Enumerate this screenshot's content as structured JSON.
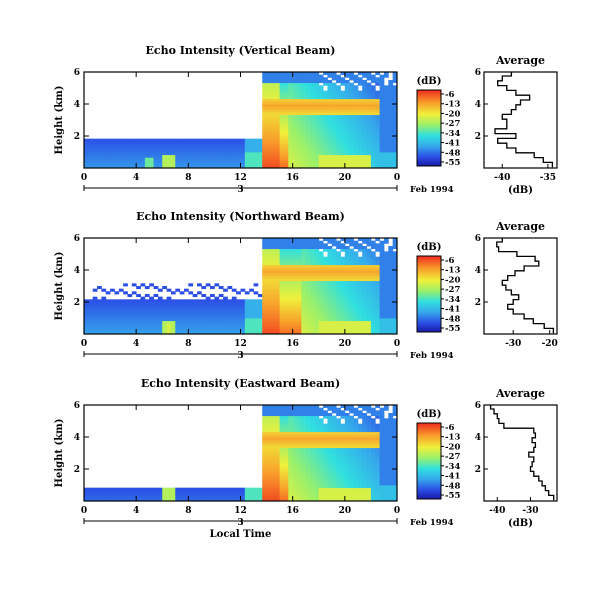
{
  "chart_data": [
    {
      "type": "heatmap",
      "title": "Echo Intensity (Vertical Beam)",
      "ylabel": "Height (km)",
      "xlabel": "",
      "x_ticks": [
        "0",
        "4",
        "8",
        "12",
        "16",
        "20",
        "0"
      ],
      "y_ticks": [
        "2",
        "4",
        "6"
      ],
      "xlim": [
        0,
        24
      ],
      "ylim": [
        0,
        6
      ],
      "date_label": "3",
      "date_suffix": "Feb 1994",
      "colorbar": {
        "unit": "(dB)",
        "ticks": [
          "-6",
          "-13",
          "-20",
          "-27",
          "-34",
          "-41",
          "-48",
          "-55"
        ],
        "range": [
          -55,
          -6
        ]
      },
      "average_profile": {
        "title": "Average",
        "xlabel": "(dB)",
        "x_ticks": [
          "-40",
          "-35"
        ],
        "xlim": [
          -42,
          -34
        ],
        "y_ticks": [
          "2",
          "4",
          "6"
        ],
        "heights": [
          0.2,
          0.5,
          0.8,
          1.1,
          1.4,
          1.7,
          2.0,
          2.3,
          2.6,
          2.9,
          3.2,
          3.5,
          3.8,
          4.1,
          4.4,
          4.7,
          5.0,
          5.3,
          5.6,
          5.9
        ],
        "values": [
          -34.5,
          -35.5,
          -36.5,
          -38.5,
          -39.5,
          -40.5,
          -38.5,
          -40.8,
          -39.5,
          -39.5,
          -40.0,
          -39.0,
          -38.5,
          -38.0,
          -37.0,
          -38.5,
          -39.5,
          -40.5,
          -40.0,
          -39.0
        ]
      }
    },
    {
      "type": "heatmap",
      "title": "Echo Intensity (Northward Beam)",
      "ylabel": "Height (km)",
      "xlabel": "",
      "x_ticks": [
        "0",
        "4",
        "8",
        "12",
        "16",
        "20",
        "0"
      ],
      "y_ticks": [
        "2",
        "4",
        "6"
      ],
      "xlim": [
        0,
        24
      ],
      "ylim": [
        0,
        6
      ],
      "date_label": "3",
      "date_suffix": "Feb 1994",
      "colorbar": {
        "unit": "(dB)",
        "ticks": [
          "-6",
          "-13",
          "-20",
          "-27",
          "-34",
          "-41",
          "-48",
          "-55"
        ],
        "range": [
          -55,
          -6
        ]
      },
      "average_profile": {
        "title": "Average",
        "xlabel": "",
        "x_ticks": [
          "-30",
          "-20"
        ],
        "xlim": [
          -38,
          -18
        ],
        "y_ticks": [
          "2",
          "4",
          "6"
        ],
        "heights": [
          0.2,
          0.5,
          0.8,
          1.1,
          1.4,
          1.7,
          2.0,
          2.3,
          2.6,
          2.9,
          3.2,
          3.5,
          3.8,
          4.1,
          4.4,
          4.7,
          5.0,
          5.3,
          5.6,
          5.9
        ],
        "values": [
          -19.0,
          -21.5,
          -24.5,
          -27.0,
          -30.0,
          -31.5,
          -30.0,
          -28.5,
          -30.5,
          -32.0,
          -33.0,
          -31.5,
          -29.5,
          -27.0,
          -23.0,
          -24.0,
          -29.0,
          -34.0,
          -34.5,
          -33.0
        ]
      }
    },
    {
      "type": "heatmap",
      "title": "Echo Intensity (Eastward Beam)",
      "ylabel": "Height (km)",
      "xlabel": "Local Time",
      "x_ticks": [
        "0",
        "4",
        "8",
        "12",
        "16",
        "20",
        "0"
      ],
      "y_ticks": [
        "2",
        "4",
        "6"
      ],
      "xlim": [
        0,
        24
      ],
      "ylim": [
        0,
        6
      ],
      "date_label": "3",
      "date_suffix": "Feb 1994",
      "colorbar": {
        "unit": "(dB)",
        "ticks": [
          "-6",
          "-13",
          "-20",
          "-27",
          "-34",
          "-41",
          "-48",
          "-55"
        ],
        "range": [
          -55,
          -6
        ]
      },
      "average_profile": {
        "title": "Average",
        "xlabel": "(dB)",
        "x_ticks": [
          "-40",
          "-30"
        ],
        "xlim": [
          -44,
          -22
        ],
        "y_ticks": [
          "2",
          "4",
          "6"
        ],
        "heights": [
          0.2,
          0.5,
          0.8,
          1.1,
          1.4,
          1.7,
          2.0,
          2.3,
          2.6,
          2.9,
          3.2,
          3.5,
          3.8,
          4.1,
          4.4,
          4.7,
          5.0,
          5.3,
          5.6,
          5.9
        ],
        "values": [
          -23.0,
          -24.5,
          -25.5,
          -26.5,
          -27.5,
          -29.0,
          -30.0,
          -29.5,
          -29.0,
          -30.5,
          -29.0,
          -28.5,
          -29.5,
          -28.5,
          -29.0,
          -38.0,
          -39.5,
          -40.0,
          -41.0,
          -42.0
        ]
      }
    }
  ]
}
